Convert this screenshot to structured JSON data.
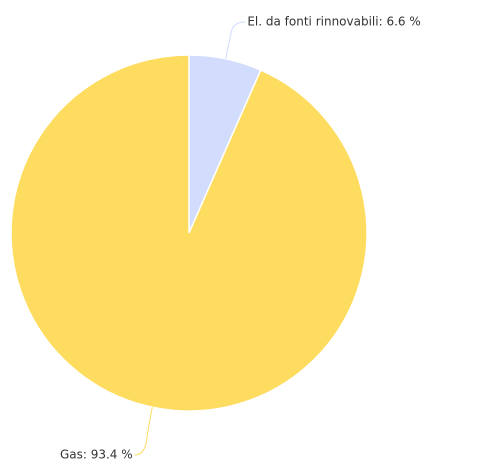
{
  "chart_data": {
    "type": "pie",
    "values": [
      6.6,
      93.4
    ],
    "value_labels": [
      "El. da fonti rinnovabili: 6.6 %",
      "Gas: 93.4 %"
    ],
    "colors": [
      "#d2dcfd",
      "#fedc5f"
    ]
  }
}
